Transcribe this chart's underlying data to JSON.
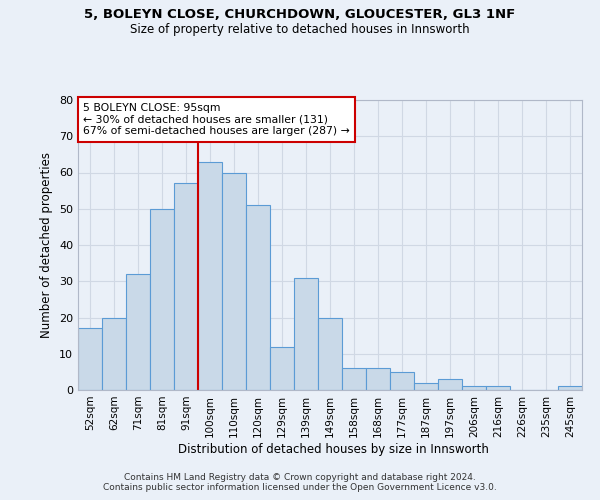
{
  "title1": "5, BOLEYN CLOSE, CHURCHDOWN, GLOUCESTER, GL3 1NF",
  "title2": "Size of property relative to detached houses in Innsworth",
  "xlabel": "Distribution of detached houses by size in Innsworth",
  "ylabel": "Number of detached properties",
  "bar_labels": [
    "52sqm",
    "62sqm",
    "71sqm",
    "81sqm",
    "91sqm",
    "100sqm",
    "110sqm",
    "120sqm",
    "129sqm",
    "139sqm",
    "149sqm",
    "158sqm",
    "168sqm",
    "177sqm",
    "187sqm",
    "197sqm",
    "206sqm",
    "216sqm",
    "226sqm",
    "235sqm",
    "245sqm"
  ],
  "bar_values": [
    17,
    20,
    32,
    50,
    57,
    63,
    60,
    51,
    12,
    31,
    20,
    6,
    6,
    5,
    2,
    3,
    1,
    1,
    0,
    0,
    1
  ],
  "bar_color": "#c9d9e8",
  "bar_edge_color": "#5b9bd5",
  "vline_x": 4.5,
  "vline_color": "#cc0000",
  "annotation_title": "5 BOLEYN CLOSE: 95sqm",
  "annotation_line1": "← 30% of detached houses are smaller (131)",
  "annotation_line2": "67% of semi-detached houses are larger (287) →",
  "annotation_box_color": "#ffffff",
  "annotation_box_edge": "#cc0000",
  "ylim": [
    0,
    80
  ],
  "yticks": [
    0,
    10,
    20,
    30,
    40,
    50,
    60,
    70,
    80
  ],
  "grid_color": "#d0d8e4",
  "background_color": "#eaf0f8",
  "plot_bg_color": "#eaf0f8",
  "footer1": "Contains HM Land Registry data © Crown copyright and database right 2024.",
  "footer2": "Contains public sector information licensed under the Open Government Licence v3.0."
}
